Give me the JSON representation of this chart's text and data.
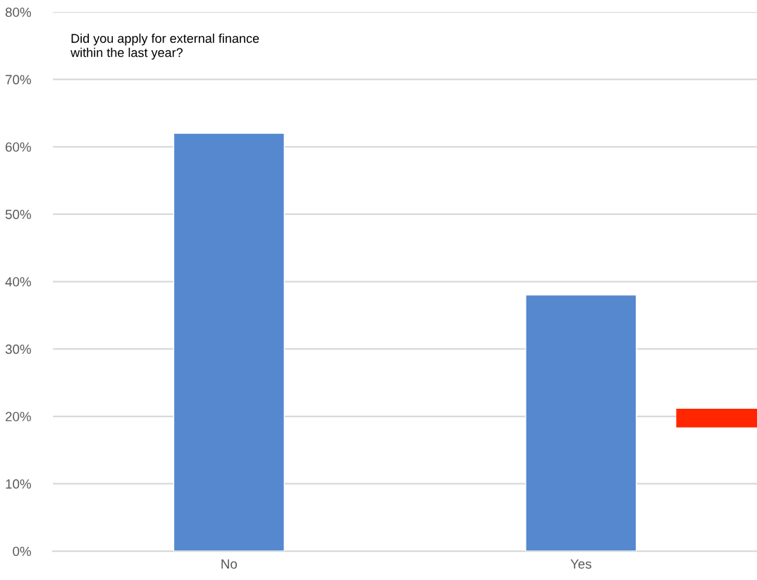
{
  "chart_data": {
    "type": "bar",
    "title": "Did you apply for external finance\nwithin the last year?",
    "categories": [
      "No",
      "Yes"
    ],
    "series": [
      {
        "color": "#5588cf",
        "values": [
          62,
          38
        ]
      }
    ],
    "ylim": [
      0,
      80
    ],
    "yticks": [
      {
        "value": 0,
        "label": "0%"
      },
      {
        "value": 10,
        "label": "10%"
      },
      {
        "value": 20,
        "label": "20%"
      },
      {
        "value": 30,
        "label": "30%"
      },
      {
        "value": 40,
        "label": "40%"
      },
      {
        "value": 50,
        "label": "50%"
      },
      {
        "value": 60,
        "label": "60%"
      },
      {
        "value": 70,
        "label": "70%"
      },
      {
        "value": 80,
        "label": "80%"
      }
    ],
    "grid": "y"
  }
}
